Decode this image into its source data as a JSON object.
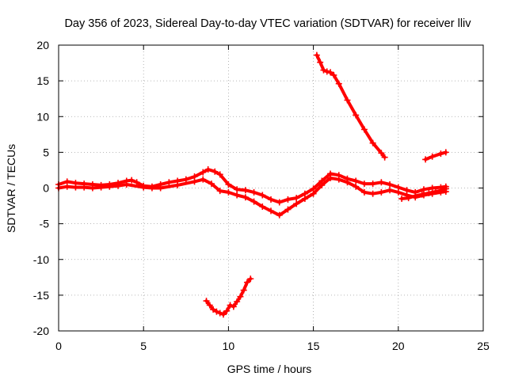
{
  "chart_data": {
    "type": "scatter",
    "title": "Day 356 of 2023, Sidereal Day-to-day VTEC variation (SDTVAR) for receiver lliv",
    "xlabel": "GPS time / hours",
    "ylabel": "SDTVAR / TECUs",
    "xlim": [
      0,
      25
    ],
    "ylim": [
      -20,
      20
    ],
    "xticks": [
      0,
      5,
      10,
      15,
      20,
      25
    ],
    "yticks": [
      -20,
      -15,
      -10,
      -5,
      0,
      5,
      10,
      15,
      20
    ],
    "grid": true,
    "marker": "plus",
    "color": "#ff0000",
    "series": [
      {
        "name": "main trace upper",
        "x": [
          0,
          0.5,
          1,
          1.5,
          2,
          2.5,
          3,
          3.5,
          4,
          4.3,
          4.6,
          5,
          5.5,
          6,
          6.5,
          7,
          7.5,
          8,
          8.5,
          8.8,
          9.2,
          9.5,
          10,
          10.5,
          11,
          11.5,
          12,
          12.5,
          13,
          13.5,
          14,
          14.5,
          15,
          15.5,
          16,
          16.5,
          17,
          17.5,
          18,
          18.5,
          19,
          19.5,
          20,
          20.5,
          21,
          21.5,
          22,
          22.5,
          22.8
        ],
        "y": [
          0.5,
          0.9,
          0.7,
          0.6,
          0.5,
          0.4,
          0.5,
          0.7,
          1.0,
          1.1,
          0.8,
          0.3,
          0.2,
          0.5,
          0.8,
          1.0,
          1.2,
          1.6,
          2.2,
          2.6,
          2.3,
          1.9,
          0.5,
          -0.2,
          -0.3,
          -0.6,
          -1.0,
          -1.6,
          -2.0,
          -1.6,
          -1.4,
          -0.8,
          -0.1,
          1.0,
          2.0,
          1.8,
          1.3,
          1.0,
          0.6,
          0.6,
          0.8,
          0.5,
          0.1,
          -0.3,
          -0.6,
          -0.2,
          0.0,
          0.1,
          0.2
        ]
      },
      {
        "name": "main trace lower",
        "x": [
          0,
          0.5,
          1,
          1.5,
          2,
          2.5,
          3,
          3.5,
          4,
          5,
          5.5,
          6,
          7,
          8,
          8.5,
          9,
          9.5,
          10,
          10.5,
          11,
          11.5,
          12,
          12.5,
          13,
          13.5,
          14,
          14.5,
          15,
          15.5,
          16,
          16.5,
          17,
          17.5,
          18,
          18.5,
          19,
          19.5,
          20,
          20.5,
          21,
          21.5,
          22,
          22.5,
          22.8
        ],
        "y": [
          0.0,
          0.2,
          0.1,
          0.1,
          0.0,
          0.1,
          0.2,
          0.3,
          0.5,
          0.1,
          0.0,
          0.0,
          0.4,
          0.9,
          1.2,
          0.6,
          -0.4,
          -0.6,
          -1.0,
          -1.3,
          -1.9,
          -2.6,
          -3.2,
          -3.8,
          -3.0,
          -2.2,
          -1.5,
          -0.8,
          0.4,
          1.4,
          1.2,
          0.8,
          0.2,
          -0.6,
          -0.8,
          -0.6,
          -0.3,
          -0.6,
          -1.0,
          -1.3,
          -1.0,
          -0.8,
          -0.6,
          -0.5
        ]
      },
      {
        "name": "upper arc",
        "x": [
          15.2,
          15.4,
          15.6,
          15.8,
          16.0,
          16.2,
          16.5,
          17.0,
          17.5,
          18.0,
          18.5,
          19.0,
          19.2
        ],
        "y": [
          18.6,
          17.6,
          16.5,
          16.3,
          16.2,
          15.8,
          14.6,
          12.3,
          10.2,
          8.2,
          6.3,
          4.9,
          4.3
        ]
      },
      {
        "name": "lower arc",
        "x": [
          8.7,
          8.9,
          9.1,
          9.3,
          9.5,
          9.7,
          9.9,
          10.1,
          10.3,
          10.5,
          10.7,
          10.9,
          11.1,
          11.3
        ],
        "y": [
          -15.8,
          -16.4,
          -17.0,
          -17.3,
          -17.5,
          -17.7,
          -17.2,
          -16.4,
          -16.6,
          -15.9,
          -15.2,
          -14.3,
          -13.2,
          -12.7
        ]
      },
      {
        "name": "late rising trace",
        "x": [
          21.6,
          22.0,
          22.5,
          22.8
        ],
        "y": [
          4.0,
          4.4,
          4.8,
          5.0
        ]
      },
      {
        "name": "late low trace",
        "x": [
          20.2,
          20.6,
          21.0,
          21.4,
          21.8,
          22.2,
          22.6,
          22.8
        ],
        "y": [
          -1.5,
          -1.4,
          -1.1,
          -0.9,
          -0.7,
          -0.5,
          -0.3,
          -0.1
        ]
      }
    ]
  }
}
